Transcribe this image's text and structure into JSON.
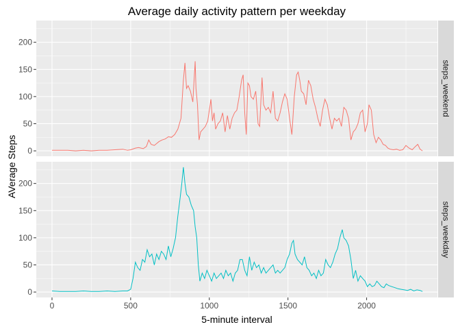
{
  "chart_data": {
    "type": "line",
    "title": "Average daily activity pattern per weekday",
    "xlabel": "5-minute interval",
    "ylabel": "AVerage Steps",
    "xlim": [
      -100,
      2450
    ],
    "ylim": [
      -10,
      240
    ],
    "x_ticks": [
      0,
      500,
      1000,
      1500,
      2000
    ],
    "x_tick_labels": [
      "0",
      "500",
      "1000",
      "1500",
      "2000"
    ],
    "y_ticks": [
      0,
      50,
      100,
      150,
      200
    ],
    "y_tick_labels": [
      "0",
      "50",
      "100",
      "150",
      "200"
    ],
    "grid": true,
    "legend": "none",
    "panels": [
      {
        "strip": "steps_weekend",
        "color": "#F8766D",
        "points": [
          [
            0,
            1
          ],
          [
            50,
            1
          ],
          [
            100,
            1
          ],
          [
            150,
            0
          ],
          [
            200,
            1
          ],
          [
            250,
            0
          ],
          [
            300,
            1
          ],
          [
            350,
            1
          ],
          [
            400,
            2
          ],
          [
            450,
            3
          ],
          [
            480,
            1
          ],
          [
            500,
            2
          ],
          [
            530,
            5
          ],
          [
            550,
            6
          ],
          [
            580,
            4
          ],
          [
            600,
            8
          ],
          [
            615,
            20
          ],
          [
            630,
            12
          ],
          [
            650,
            10
          ],
          [
            680,
            17
          ],
          [
            700,
            20
          ],
          [
            720,
            22
          ],
          [
            740,
            26
          ],
          [
            760,
            25
          ],
          [
            780,
            30
          ],
          [
            800,
            40
          ],
          [
            820,
            60
          ],
          [
            835,
            130
          ],
          [
            845,
            162
          ],
          [
            855,
            115
          ],
          [
            865,
            120
          ],
          [
            880,
            110
          ],
          [
            895,
            90
          ],
          [
            910,
            165
          ],
          [
            915,
            115
          ],
          [
            925,
            85
          ],
          [
            935,
            20
          ],
          [
            945,
            35
          ],
          [
            960,
            40
          ],
          [
            975,
            45
          ],
          [
            990,
            55
          ],
          [
            1000,
            75
          ],
          [
            1010,
            95
          ],
          [
            1020,
            55
          ],
          [
            1030,
            70
          ],
          [
            1040,
            40
          ],
          [
            1055,
            50
          ],
          [
            1070,
            55
          ],
          [
            1085,
            70
          ],
          [
            1100,
            35
          ],
          [
            1115,
            65
          ],
          [
            1130,
            40
          ],
          [
            1145,
            60
          ],
          [
            1160,
            70
          ],
          [
            1175,
            75
          ],
          [
            1190,
            100
          ],
          [
            1205,
            130
          ],
          [
            1215,
            140
          ],
          [
            1225,
            70
          ],
          [
            1235,
            30
          ],
          [
            1245,
            125
          ],
          [
            1255,
            120
          ],
          [
            1265,
            100
          ],
          [
            1280,
            95
          ],
          [
            1295,
            110
          ],
          [
            1310,
            50
          ],
          [
            1320,
            45
          ],
          [
            1335,
            135
          ],
          [
            1345,
            85
          ],
          [
            1360,
            75
          ],
          [
            1375,
            80
          ],
          [
            1390,
            70
          ],
          [
            1405,
            110
          ],
          [
            1420,
            60
          ],
          [
            1435,
            55
          ],
          [
            1450,
            70
          ],
          [
            1465,
            90
          ],
          [
            1480,
            105
          ],
          [
            1495,
            95
          ],
          [
            1510,
            60
          ],
          [
            1525,
            30
          ],
          [
            1540,
            100
          ],
          [
            1555,
            140
          ],
          [
            1565,
            145
          ],
          [
            1575,
            130
          ],
          [
            1585,
            110
          ],
          [
            1600,
            105
          ],
          [
            1615,
            85
          ],
          [
            1630,
            130
          ],
          [
            1645,
            120
          ],
          [
            1660,
            95
          ],
          [
            1675,
            80
          ],
          [
            1690,
            60
          ],
          [
            1705,
            45
          ],
          [
            1720,
            75
          ],
          [
            1735,
            95
          ],
          [
            1750,
            85
          ],
          [
            1765,
            60
          ],
          [
            1780,
            40
          ],
          [
            1795,
            60
          ],
          [
            1810,
            55
          ],
          [
            1825,
            60
          ],
          [
            1840,
            45
          ],
          [
            1855,
            80
          ],
          [
            1870,
            75
          ],
          [
            1885,
            60
          ],
          [
            1900,
            20
          ],
          [
            1915,
            35
          ],
          [
            1930,
            40
          ],
          [
            1945,
            50
          ],
          [
            1960,
            70
          ],
          [
            1975,
            75
          ],
          [
            1990,
            35
          ],
          [
            2005,
            50
          ],
          [
            2015,
            85
          ],
          [
            2030,
            75
          ],
          [
            2045,
            30
          ],
          [
            2060,
            15
          ],
          [
            2075,
            25
          ],
          [
            2090,
            20
          ],
          [
            2105,
            12
          ],
          [
            2120,
            10
          ],
          [
            2135,
            5
          ],
          [
            2150,
            3
          ],
          [
            2170,
            2
          ],
          [
            2190,
            3
          ],
          [
            2210,
            1
          ],
          [
            2230,
            2
          ],
          [
            2250,
            10
          ],
          [
            2270,
            5
          ],
          [
            2290,
            2
          ],
          [
            2310,
            8
          ],
          [
            2325,
            12
          ],
          [
            2340,
            3
          ],
          [
            2355,
            0
          ]
        ]
      },
      {
        "strip": "steps_weekday",
        "color": "#00BFC4",
        "points": [
          [
            0,
            2
          ],
          [
            50,
            1
          ],
          [
            100,
            1
          ],
          [
            150,
            1
          ],
          [
            200,
            2
          ],
          [
            250,
            1
          ],
          [
            300,
            1
          ],
          [
            350,
            2
          ],
          [
            400,
            1
          ],
          [
            450,
            2
          ],
          [
            480,
            2
          ],
          [
            500,
            5
          ],
          [
            515,
            25
          ],
          [
            530,
            55
          ],
          [
            545,
            45
          ],
          [
            560,
            40
          ],
          [
            575,
            60
          ],
          [
            590,
            55
          ],
          [
            605,
            78
          ],
          [
            620,
            65
          ],
          [
            635,
            70
          ],
          [
            650,
            50
          ],
          [
            665,
            70
          ],
          [
            680,
            60
          ],
          [
            695,
            75
          ],
          [
            710,
            70
          ],
          [
            725,
            60
          ],
          [
            740,
            85
          ],
          [
            755,
            65
          ],
          [
            770,
            80
          ],
          [
            785,
            100
          ],
          [
            800,
            140
          ],
          [
            815,
            175
          ],
          [
            825,
            200
          ],
          [
            835,
            230
          ],
          [
            845,
            200
          ],
          [
            855,
            180
          ],
          [
            870,
            175
          ],
          [
            885,
            160
          ],
          [
            900,
            150
          ],
          [
            910,
            120
          ],
          [
            920,
            100
          ],
          [
            930,
            50
          ],
          [
            940,
            20
          ],
          [
            955,
            35
          ],
          [
            970,
            25
          ],
          [
            985,
            40
          ],
          [
            1000,
            30
          ],
          [
            1015,
            20
          ],
          [
            1030,
            35
          ],
          [
            1045,
            25
          ],
          [
            1060,
            30
          ],
          [
            1075,
            35
          ],
          [
            1090,
            25
          ],
          [
            1105,
            40
          ],
          [
            1120,
            30
          ],
          [
            1135,
            35
          ],
          [
            1150,
            20
          ],
          [
            1165,
            35
          ],
          [
            1180,
            40
          ],
          [
            1195,
            60
          ],
          [
            1210,
            60
          ],
          [
            1225,
            40
          ],
          [
            1240,
            30
          ],
          [
            1255,
            65
          ],
          [
            1270,
            40
          ],
          [
            1285,
            55
          ],
          [
            1300,
            45
          ],
          [
            1315,
            50
          ],
          [
            1330,
            35
          ],
          [
            1345,
            45
          ],
          [
            1360,
            35
          ],
          [
            1375,
            40
          ],
          [
            1390,
            45
          ],
          [
            1405,
            50
          ],
          [
            1420,
            35
          ],
          [
            1435,
            40
          ],
          [
            1450,
            35
          ],
          [
            1465,
            40
          ],
          [
            1480,
            45
          ],
          [
            1495,
            60
          ],
          [
            1510,
            70
          ],
          [
            1525,
            90
          ],
          [
            1535,
            95
          ],
          [
            1545,
            70
          ],
          [
            1560,
            60
          ],
          [
            1575,
            55
          ],
          [
            1590,
            50
          ],
          [
            1605,
            65
          ],
          [
            1620,
            45
          ],
          [
            1635,
            40
          ],
          [
            1650,
            30
          ],
          [
            1665,
            35
          ],
          [
            1680,
            25
          ],
          [
            1695,
            40
          ],
          [
            1710,
            30
          ],
          [
            1725,
            35
          ],
          [
            1740,
            60
          ],
          [
            1755,
            50
          ],
          [
            1770,
            45
          ],
          [
            1785,
            55
          ],
          [
            1800,
            70
          ],
          [
            1815,
            80
          ],
          [
            1830,
            100
          ],
          [
            1845,
            115
          ],
          [
            1855,
            100
          ],
          [
            1870,
            95
          ],
          [
            1885,
            85
          ],
          [
            1900,
            60
          ],
          [
            1915,
            25
          ],
          [
            1930,
            40
          ],
          [
            1945,
            20
          ],
          [
            1960,
            30
          ],
          [
            1975,
            25
          ],
          [
            1990,
            20
          ],
          [
            2005,
            10
          ],
          [
            2020,
            15
          ],
          [
            2035,
            10
          ],
          [
            2050,
            12
          ],
          [
            2065,
            20
          ],
          [
            2080,
            15
          ],
          [
            2095,
            10
          ],
          [
            2110,
            8
          ],
          [
            2125,
            15
          ],
          [
            2140,
            12
          ],
          [
            2160,
            10
          ],
          [
            2180,
            8
          ],
          [
            2200,
            6
          ],
          [
            2220,
            5
          ],
          [
            2240,
            4
          ],
          [
            2260,
            3
          ],
          [
            2280,
            5
          ],
          [
            2300,
            2
          ],
          [
            2320,
            4
          ],
          [
            2340,
            3
          ],
          [
            2355,
            1
          ]
        ]
      }
    ]
  }
}
